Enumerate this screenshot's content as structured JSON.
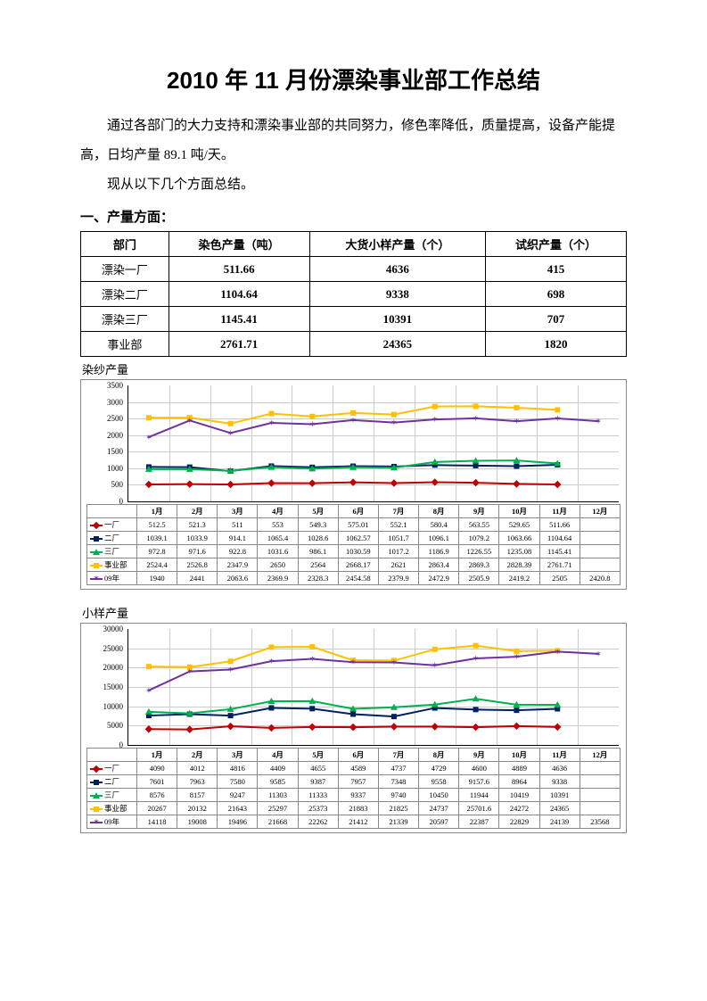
{
  "title": "2010 年 11 月份漂染事业部工作总结",
  "para1": "通过各部门的大力支持和漂染事业部的共同努力，修色率降低，质量提高，设备产能提高，日均产量 89.1 吨/天。",
  "para2": "现从以下几个方面总结。",
  "section1": "一、产量方面：",
  "summaryTable": {
    "headers": [
      "部门",
      "染色产量（吨）",
      "大货小样产量（个）",
      "试织产量（个）"
    ],
    "rows": [
      [
        "漂染一厂",
        "511.66",
        "4636",
        "415"
      ],
      [
        "漂染二厂",
        "1104.64",
        "9338",
        "698"
      ],
      [
        "漂染三厂",
        "1145.41",
        "10391",
        "707"
      ],
      [
        "事业部",
        "2761.71",
        "24365",
        "1820"
      ]
    ]
  },
  "colors": {
    "s1": "#c00000",
    "s2": "#002060",
    "s3": "#00b050",
    "s4": "#ffc000",
    "s5": "#7030a0",
    "grid": "#cccccc",
    "border": "#888888"
  },
  "months": [
    "1月",
    "2月",
    "3月",
    "4月",
    "5月",
    "6月",
    "7月",
    "8月",
    "9月",
    "10月",
    "11月",
    "12月"
  ],
  "chart1": {
    "title": "染纱产量",
    "ymin": 0,
    "ymax": 3500,
    "ystep": 500,
    "series": [
      {
        "name": "一厂",
        "colorKey": "s1",
        "marker": "diamond",
        "data": [
          512.5,
          521.3,
          511,
          553,
          549.3,
          575.01,
          552.1,
          580.4,
          563.55,
          529.65,
          511.66,
          null
        ]
      },
      {
        "name": "二厂",
        "colorKey": "s2",
        "marker": "square",
        "data": [
          1039.1,
          1033.9,
          914.1,
          1065.4,
          1028.6,
          1062.57,
          1051.7,
          1096.1,
          1079.2,
          1063.66,
          1104.64,
          null
        ]
      },
      {
        "name": "三厂",
        "colorKey": "s3",
        "marker": "triangle",
        "data": [
          972.8,
          971.6,
          922.8,
          1031.6,
          986.1,
          1030.59,
          1017.2,
          1186.9,
          1226.55,
          1235.08,
          1145.41,
          null
        ]
      },
      {
        "name": "事业部",
        "colorKey": "s4",
        "marker": "square",
        "data": [
          2524.4,
          2526.8,
          2347.9,
          2650,
          2564,
          2668.17,
          2621,
          2863.4,
          2869.3,
          2828.39,
          2761.71,
          null
        ]
      },
      {
        "name": "09年",
        "colorKey": "s5",
        "marker": "star",
        "data": [
          1940,
          2441,
          2063.6,
          2369.9,
          2328.3,
          2454.58,
          2379.9,
          2472.9,
          2505.9,
          2419.2,
          2505,
          2420.8
        ]
      }
    ]
  },
  "chart2": {
    "title": "小样产量",
    "ymin": 0,
    "ymax": 30000,
    "ystep": 5000,
    "series": [
      {
        "name": "一厂",
        "colorKey": "s1",
        "marker": "diamond",
        "data": [
          4090,
          4012,
          4816,
          4409,
          4655,
          4589,
          4737,
          4729,
          4600,
          4889,
          4636,
          null
        ]
      },
      {
        "name": "二厂",
        "colorKey": "s2",
        "marker": "square",
        "data": [
          7601,
          7963,
          7580,
          9585,
          9387,
          7957,
          7348,
          9558,
          9157.6,
          8964,
          9338,
          null
        ]
      },
      {
        "name": "三厂",
        "colorKey": "s3",
        "marker": "triangle",
        "data": [
          8576,
          8157,
          9247,
          11303,
          11333,
          9337,
          9740,
          10450,
          11944,
          10419,
          10391,
          null
        ]
      },
      {
        "name": "事业部",
        "colorKey": "s4",
        "marker": "square",
        "data": [
          20267,
          20132,
          21643,
          25297,
          25373,
          21883,
          21825,
          24737,
          25701.6,
          24272,
          24365,
          null
        ]
      },
      {
        "name": "09年",
        "colorKey": "s5",
        "marker": "star",
        "data": [
          14118,
          19008,
          19496,
          21668,
          22262,
          21412,
          21339,
          20597,
          22387,
          22829,
          24139,
          23568
        ]
      }
    ]
  }
}
